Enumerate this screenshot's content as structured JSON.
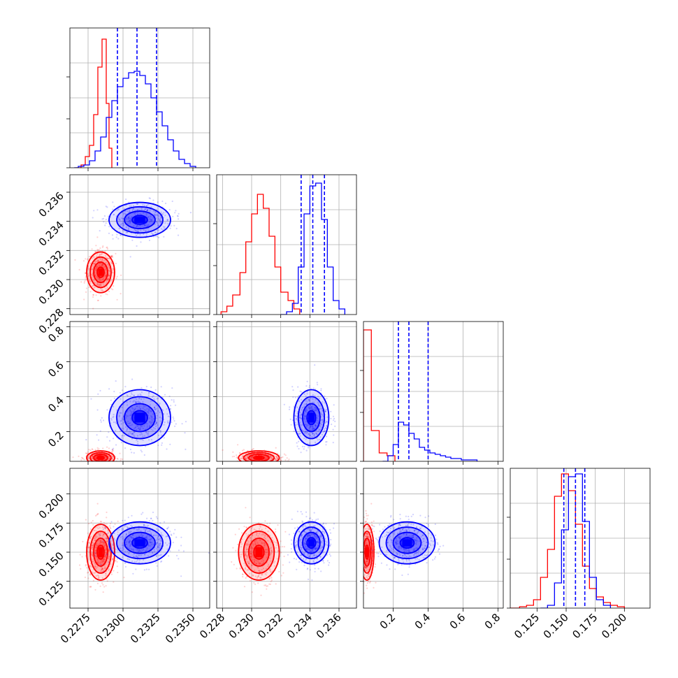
{
  "colors": {
    "series_a": "#ff0000",
    "series_b": "#0000ff",
    "grid": "#b0b0b0",
    "frame": "#000000"
  },
  "chart_data": {
    "type": "corner",
    "grid": true,
    "parameters": [
      {
        "range": [
          0.2262,
          0.2362
        ],
        "ticks": [
          0.2275,
          0.23,
          0.2325,
          0.235
        ],
        "tick_labels": [
          "0.2275",
          "0.2300",
          "0.2325",
          "0.2350"
        ]
      },
      {
        "range": [
          0.2276,
          0.2372
        ],
        "ticks": [
          0.228,
          0.23,
          0.232,
          0.234,
          0.236
        ],
        "tick_labels": [
          "0.228",
          "0.230",
          "0.232",
          "0.234",
          "0.236"
        ]
      },
      {
        "range": [
          0.03,
          0.83
        ],
        "ticks": [
          0.2,
          0.4,
          0.6,
          0.8
        ],
        "tick_labels": [
          "0.2",
          "0.4",
          "0.6",
          "0.8"
        ]
      },
      {
        "range": [
          0.102,
          0.222
        ],
        "ticks": [
          0.125,
          0.15,
          0.175,
          0.2
        ],
        "tick_labels": [
          "0.125",
          "0.150",
          "0.175",
          "0.200"
        ]
      }
    ],
    "series": [
      {
        "color": "#ff0000",
        "means": [
          0.2284,
          0.2305,
          0.05,
          0.15
        ],
        "sds": [
          0.0005,
          0.0007,
          0.02,
          0.012
        ],
        "histograms": [
          [
            [
              0.2266,
              0.0
            ],
            [
              0.227,
              0.02
            ],
            [
              0.2273,
              0.08
            ],
            [
              0.2276,
              0.16
            ],
            [
              0.2279,
              0.38
            ],
            [
              0.2282,
              0.72
            ],
            [
              0.2285,
              0.92
            ],
            [
              0.2288,
              0.46
            ],
            [
              0.229,
              0.14
            ],
            [
              0.2292,
              0.0
            ]
          ],
          [
            [
              0.2279,
              0.02
            ],
            [
              0.2283,
              0.06
            ],
            [
              0.2287,
              0.14
            ],
            [
              0.2292,
              0.3
            ],
            [
              0.2296,
              0.52
            ],
            [
              0.23,
              0.72
            ],
            [
              0.2304,
              0.86
            ],
            [
              0.2308,
              0.76
            ],
            [
              0.2312,
              0.56
            ],
            [
              0.2316,
              0.34
            ],
            [
              0.232,
              0.16
            ],
            [
              0.2325,
              0.1
            ],
            [
              0.2329,
              0.04
            ],
            [
              0.2333,
              0.0
            ]
          ],
          [
            [
              0.03,
              0.94
            ],
            [
              0.075,
              0.22
            ],
            [
              0.12,
              0.06
            ],
            [
              0.165,
              0.04
            ],
            [
              0.21,
              0.0
            ]
          ],
          [
            [
              0.102,
              0.0
            ],
            [
              0.11,
              0.01
            ],
            [
              0.116,
              0.02
            ],
            [
              0.122,
              0.06
            ],
            [
              0.128,
              0.22
            ],
            [
              0.134,
              0.42
            ],
            [
              0.14,
              0.8
            ],
            [
              0.146,
              0.96
            ],
            [
              0.152,
              0.84
            ],
            [
              0.158,
              0.6
            ],
            [
              0.164,
              0.3
            ],
            [
              0.17,
              0.14
            ],
            [
              0.176,
              0.08
            ],
            [
              0.182,
              0.04
            ],
            [
              0.188,
              0.02
            ],
            [
              0.194,
              0.01
            ],
            [
              0.2,
              0.0
            ]
          ]
        ]
      },
      {
        "color": "#0000ff",
        "means": [
          0.2312,
          0.2341,
          0.28,
          0.158
        ],
        "sds": [
          0.0011,
          0.0006,
          0.08,
          0.009
        ],
        "quantiles": [
          [
            0.2296,
            0.231,
            0.2324
          ],
          [
            0.2334,
            0.2342,
            0.235
          ],
          [
            0.23,
            0.29,
            0.4
          ],
          [
            0.148,
            0.158,
            0.166
          ]
        ],
        "histograms": [
          [
            [
              0.2265,
              0.0
            ],
            [
              0.2268,
              0.01
            ],
            [
              0.2272,
              0.02
            ],
            [
              0.2276,
              0.05
            ],
            [
              0.228,
              0.12
            ],
            [
              0.2284,
              0.22
            ],
            [
              0.2288,
              0.36
            ],
            [
              0.2292,
              0.48
            ],
            [
              0.2296,
              0.58
            ],
            [
              0.23,
              0.64
            ],
            [
              0.2304,
              0.68
            ],
            [
              0.2308,
              0.69
            ],
            [
              0.2312,
              0.66
            ],
            [
              0.2316,
              0.6
            ],
            [
              0.232,
              0.5
            ],
            [
              0.2324,
              0.4
            ],
            [
              0.2328,
              0.3
            ],
            [
              0.2332,
              0.2
            ],
            [
              0.2336,
              0.12
            ],
            [
              0.234,
              0.06
            ],
            [
              0.2344,
              0.03
            ],
            [
              0.2348,
              0.01
            ],
            [
              0.2352,
              0.0
            ]
          ],
          [
            [
              0.232,
              0.0
            ],
            [
              0.2324,
              0.02
            ],
            [
              0.2328,
              0.08
            ],
            [
              0.2332,
              0.34
            ],
            [
              0.2336,
              0.72
            ],
            [
              0.234,
              0.92
            ],
            [
              0.2344,
              0.94
            ],
            [
              0.2348,
              0.68
            ],
            [
              0.2352,
              0.34
            ],
            [
              0.2356,
              0.1
            ],
            [
              0.236,
              0.04
            ],
            [
              0.2364,
              0.0
            ]
          ],
          [
            [
              0.14,
              0.0
            ],
            [
              0.17,
              0.04
            ],
            [
              0.2,
              0.12
            ],
            [
              0.23,
              0.28
            ],
            [
              0.26,
              0.26
            ],
            [
              0.29,
              0.2
            ],
            [
              0.32,
              0.16
            ],
            [
              0.35,
              0.1
            ],
            [
              0.38,
              0.08
            ],
            [
              0.41,
              0.06
            ],
            [
              0.44,
              0.05
            ],
            [
              0.47,
              0.04
            ],
            [
              0.5,
              0.03
            ],
            [
              0.53,
              0.02
            ],
            [
              0.56,
              0.02
            ],
            [
              0.59,
              0.01
            ],
            [
              0.62,
              0.01
            ],
            [
              0.68,
              0.0
            ]
          ],
          [
            [
              0.128,
              0.0
            ],
            [
              0.134,
              0.02
            ],
            [
              0.14,
              0.18
            ],
            [
              0.146,
              0.56
            ],
            [
              0.152,
              0.94
            ],
            [
              0.158,
              0.96
            ],
            [
              0.164,
              0.62
            ],
            [
              0.17,
              0.22
            ],
            [
              0.176,
              0.06
            ],
            [
              0.182,
              0.02
            ],
            [
              0.188,
              0.0
            ]
          ]
        ]
      }
    ]
  }
}
